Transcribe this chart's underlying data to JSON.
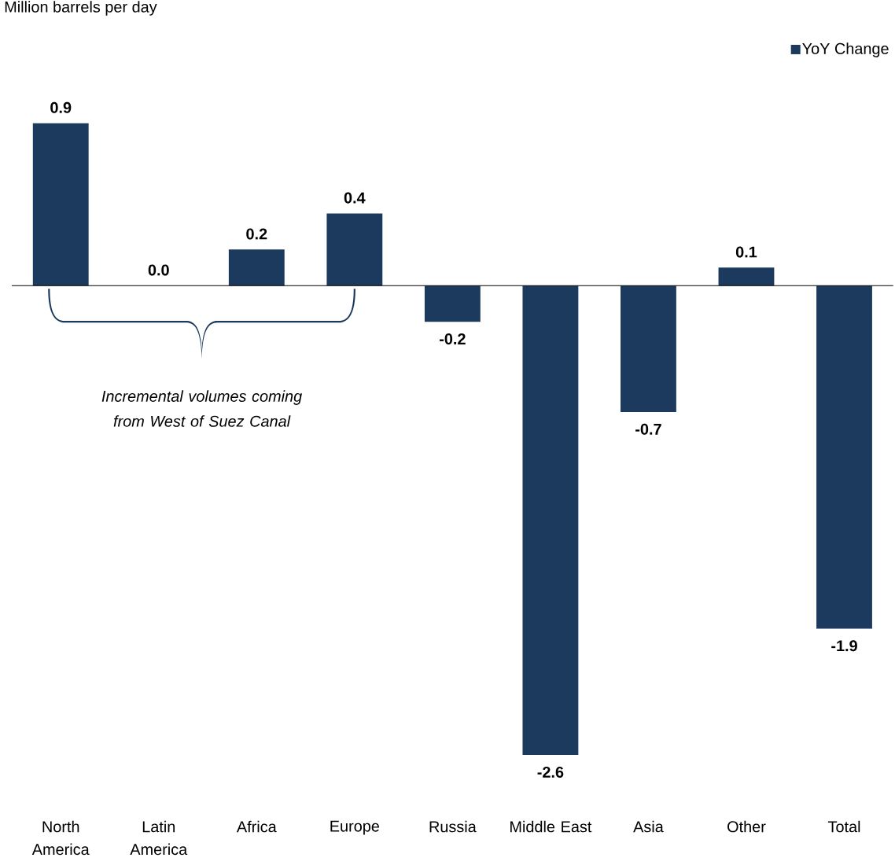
{
  "chart_data": {
    "type": "bar",
    "categories": [
      "North America",
      "Latin America",
      "Africa",
      "Europe",
      "Russia",
      "Middle East",
      "Asia",
      "Other",
      "Total"
    ],
    "series": [
      {
        "name": "YoY Change",
        "color": "#1b3a5e",
        "values": [
          0.9,
          0.0,
          0.2,
          0.4,
          -0.2,
          -2.6,
          -0.7,
          0.1,
          -1.9
        ],
        "value_labels": [
          "0.9",
          "0.0",
          "0.2",
          "0.4",
          "-0.2",
          "-2.6",
          "-0.7",
          "0.1",
          "-1.9"
        ]
      }
    ],
    "annotations": [
      "Million barrels per day",
      "Incremental volumes coming from West of Suez Canal"
    ],
    "legend": "top right"
  }
}
